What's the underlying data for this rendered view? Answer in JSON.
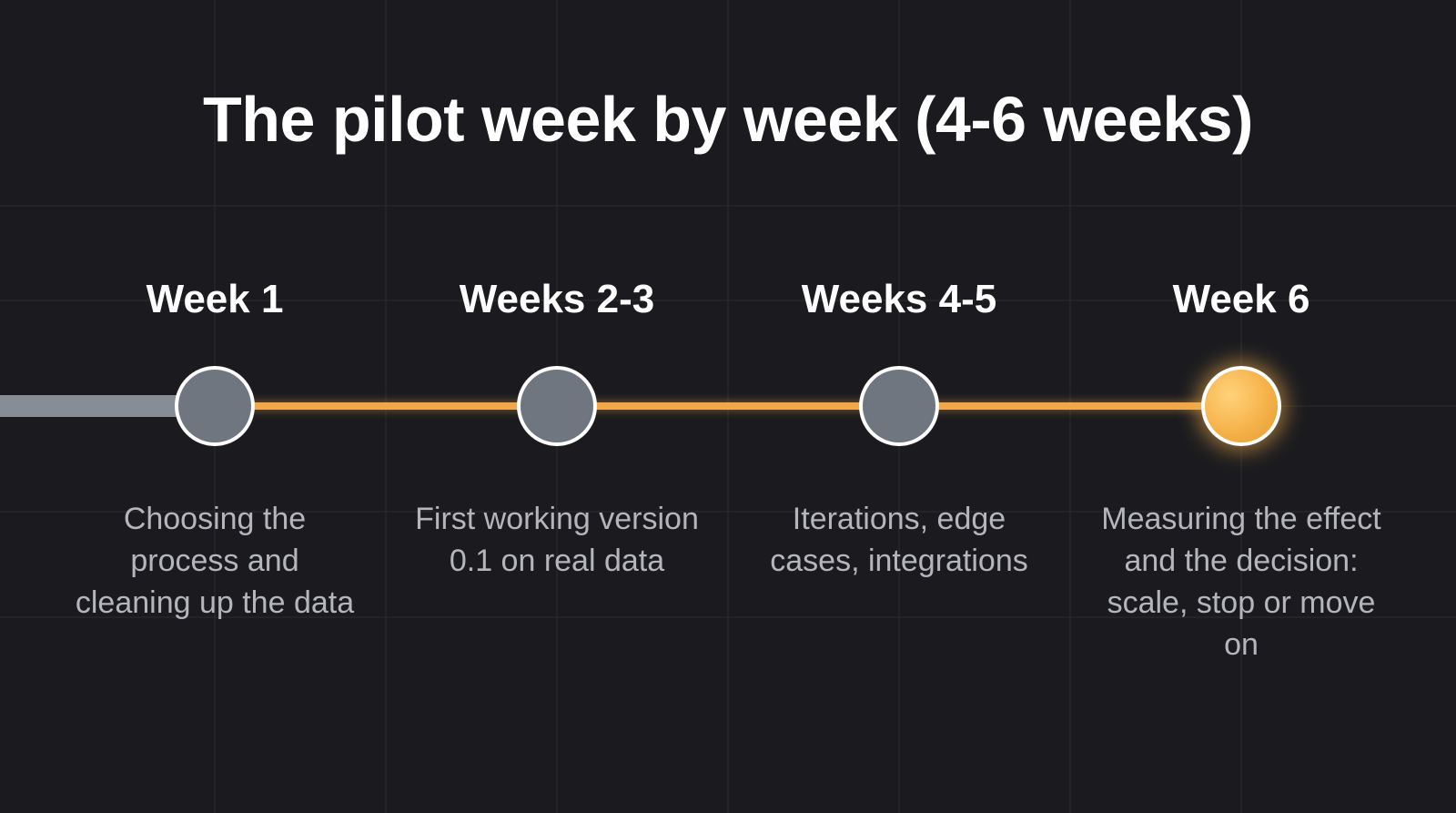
{
  "title": "The pilot week by week (4-6 weeks)",
  "colors": {
    "background": "#1b1b1f",
    "accent": "#f0a84a",
    "inactive_node": "#70767f",
    "inactive_track": "#878d96"
  },
  "stages": [
    {
      "label": "Week 1",
      "description": "Choosing the process and cleaning up the data",
      "state": "inactive"
    },
    {
      "label": "Weeks 2-3",
      "description": "First working version 0.1 on real data",
      "state": "inactive"
    },
    {
      "label": "Weeks 4-5",
      "description": "Iterations, edge cases, integrations",
      "state": "inactive"
    },
    {
      "label": "Week 6",
      "description": "Measuring the effect and the decision: scale, stop or move on",
      "state": "active"
    }
  ]
}
